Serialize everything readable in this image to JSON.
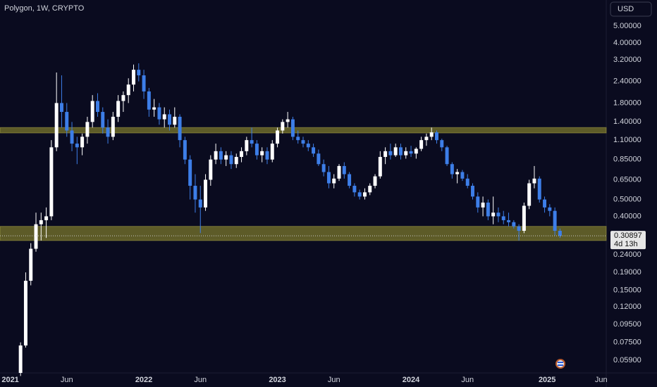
{
  "chart_data": {
    "type": "candlestick",
    "title": "Polygon, 1W, CRYPTO",
    "currency": "USD",
    "countdown": "4d 13h",
    "log_scale": true,
    "grid": false,
    "up_color": "#ffffff",
    "down_color": "#3d7ee8",
    "zone_color": "#7a772c",
    "price_line_color": "#c8c8c8",
    "zones": [
      [
        1.21,
        1.3
      ],
      [
        0.29,
        0.35
      ]
    ],
    "ylim": [
      0.05,
      7.07
    ],
    "yticks": [
      {
        "value": 5,
        "label": "5.00000"
      },
      {
        "value": 4,
        "label": "4.00000"
      },
      {
        "value": 3.2,
        "label": "3.20000"
      },
      {
        "value": 2.4,
        "label": "2.40000"
      },
      {
        "value": 1.8,
        "label": "1.80000"
      },
      {
        "value": 1.4,
        "label": "1.40000"
      },
      {
        "value": 1.1,
        "label": "1.10000"
      },
      {
        "value": 0.85,
        "label": "0.85000"
      },
      {
        "value": 0.65,
        "label": "0.65000"
      },
      {
        "value": 0.5,
        "label": "0.50000"
      },
      {
        "value": 0.4,
        "label": "0.40000"
      },
      {
        "value": 0.24,
        "label": "0.24000"
      },
      {
        "value": 0.19,
        "label": "0.19000"
      },
      {
        "value": 0.15,
        "label": "0.15000"
      },
      {
        "value": 0.12,
        "label": "0.12000"
      },
      {
        "value": 0.095,
        "label": "0.09500"
      },
      {
        "value": 0.075,
        "label": "0.07500"
      },
      {
        "value": 0.059,
        "label": "0.05900"
      }
    ],
    "xlim": [
      -4,
      232
    ],
    "xticks": [
      {
        "value": 0,
        "label": "2021"
      },
      {
        "value": 22,
        "label": "Jun"
      },
      {
        "value": 52,
        "label": "2022"
      },
      {
        "value": 74,
        "label": "Jun"
      },
      {
        "value": 104,
        "label": "2023"
      },
      {
        "value": 126,
        "label": "Jun"
      },
      {
        "value": 156,
        "label": "2024"
      },
      {
        "value": 178,
        "label": "Jun"
      },
      {
        "value": 209,
        "label": "2025"
      },
      {
        "value": 230,
        "label": "Jun"
      }
    ],
    "candles": [
      [
        4,
        0.05,
        0.075,
        0.048,
        0.072
      ],
      [
        6,
        0.072,
        0.19,
        0.07,
        0.17
      ],
      [
        8,
        0.17,
        0.28,
        0.16,
        0.26
      ],
      [
        10,
        0.26,
        0.42,
        0.25,
        0.36
      ],
      [
        12,
        0.36,
        0.42,
        0.29,
        0.38
      ],
      [
        14,
        0.38,
        0.45,
        0.3,
        0.4
      ],
      [
        16,
        0.4,
        1.1,
        0.38,
        1.0
      ],
      [
        18,
        1.0,
        2.7,
        0.95,
        1.8
      ],
      [
        20,
        1.8,
        2.6,
        1.3,
        1.6
      ],
      [
        22,
        1.6,
        1.8,
        1.15,
        1.25
      ],
      [
        24,
        1.25,
        1.4,
        0.95,
        1.05
      ],
      [
        26,
        1.05,
        1.15,
        0.8,
        1.0
      ],
      [
        28,
        1.0,
        1.2,
        0.9,
        1.15
      ],
      [
        30,
        1.15,
        1.5,
        1.05,
        1.4
      ],
      [
        32,
        1.4,
        2.0,
        1.3,
        1.85
      ],
      [
        34,
        1.85,
        2.05,
        1.5,
        1.6
      ],
      [
        36,
        1.6,
        1.7,
        1.2,
        1.3
      ],
      [
        38,
        1.3,
        1.45,
        1.05,
        1.15
      ],
      [
        40,
        1.15,
        1.6,
        1.1,
        1.5
      ],
      [
        42,
        1.5,
        2.0,
        1.4,
        1.85
      ],
      [
        44,
        1.85,
        2.1,
        1.6,
        2.0
      ],
      [
        46,
        2.0,
        2.5,
        1.8,
        2.3
      ],
      [
        48,
        2.3,
        3.0,
        2.1,
        2.8
      ],
      [
        50,
        2.8,
        3.05,
        2.4,
        2.6
      ],
      [
        52,
        2.6,
        2.8,
        1.9,
        2.1
      ],
      [
        54,
        2.1,
        2.2,
        1.5,
        1.65
      ],
      [
        56,
        1.65,
        1.9,
        1.5,
        1.7
      ],
      [
        58,
        1.7,
        1.8,
        1.35,
        1.45
      ],
      [
        60,
        1.45,
        1.7,
        1.3,
        1.55
      ],
      [
        62,
        1.55,
        1.65,
        1.25,
        1.35
      ],
      [
        64,
        1.35,
        1.7,
        1.3,
        1.5
      ],
      [
        66,
        1.5,
        1.55,
        1.0,
        1.1
      ],
      [
        68,
        1.1,
        1.15,
        0.8,
        0.85
      ],
      [
        70,
        0.85,
        0.9,
        0.5,
        0.6
      ],
      [
        72,
        0.6,
        0.7,
        0.42,
        0.5
      ],
      [
        74,
        0.5,
        0.6,
        0.32,
        0.45
      ],
      [
        76,
        0.45,
        0.7,
        0.43,
        0.65
      ],
      [
        78,
        0.65,
        0.9,
        0.6,
        0.85
      ],
      [
        80,
        0.85,
        1.05,
        0.8,
        0.95
      ],
      [
        82,
        0.95,
        1.0,
        0.8,
        0.85
      ],
      [
        84,
        0.85,
        0.95,
        0.78,
        0.9
      ],
      [
        86,
        0.9,
        0.95,
        0.75,
        0.8
      ],
      [
        88,
        0.8,
        0.92,
        0.76,
        0.88
      ],
      [
        90,
        0.88,
        1.0,
        0.82,
        0.95
      ],
      [
        92,
        0.95,
        1.15,
        0.9,
        1.1
      ],
      [
        94,
        1.1,
        1.3,
        1.0,
        1.05
      ],
      [
        96,
        1.05,
        1.1,
        0.85,
        0.9
      ],
      [
        98,
        0.9,
        1.0,
        0.82,
        0.95
      ],
      [
        100,
        0.95,
        1.0,
        0.8,
        0.85
      ],
      [
        102,
        0.85,
        1.1,
        0.82,
        1.05
      ],
      [
        104,
        1.05,
        1.3,
        1.0,
        1.25
      ],
      [
        106,
        1.25,
        1.45,
        1.2,
        1.4
      ],
      [
        108,
        1.4,
        1.6,
        1.3,
        1.45
      ],
      [
        110,
        1.45,
        1.5,
        1.1,
        1.15
      ],
      [
        112,
        1.15,
        1.25,
        1.05,
        1.1
      ],
      [
        114,
        1.1,
        1.15,
        1.0,
        1.05
      ],
      [
        116,
        1.05,
        1.1,
        0.95,
        1.0
      ],
      [
        118,
        1.0,
        1.05,
        0.88,
        0.92
      ],
      [
        120,
        0.92,
        0.97,
        0.78,
        0.8
      ],
      [
        122,
        0.8,
        0.85,
        0.68,
        0.72
      ],
      [
        124,
        0.72,
        0.78,
        0.58,
        0.62
      ],
      [
        126,
        0.62,
        0.7,
        0.58,
        0.66
      ],
      [
        128,
        0.66,
        0.8,
        0.64,
        0.78
      ],
      [
        130,
        0.78,
        0.82,
        0.66,
        0.7
      ],
      [
        132,
        0.7,
        0.72,
        0.58,
        0.6
      ],
      [
        134,
        0.6,
        0.62,
        0.52,
        0.55
      ],
      [
        136,
        0.55,
        0.57,
        0.5,
        0.52
      ],
      [
        138,
        0.52,
        0.58,
        0.5,
        0.55
      ],
      [
        140,
        0.55,
        0.62,
        0.53,
        0.6
      ],
      [
        142,
        0.6,
        0.7,
        0.58,
        0.68
      ],
      [
        144,
        0.68,
        0.95,
        0.66,
        0.88
      ],
      [
        146,
        0.88,
        1.0,
        0.8,
        0.95
      ],
      [
        148,
        0.95,
        1.05,
        0.85,
        0.9
      ],
      [
        150,
        0.9,
        1.05,
        0.88,
        1.0
      ],
      [
        152,
        1.0,
        1.05,
        0.85,
        0.9
      ],
      [
        154,
        0.9,
        1.0,
        0.86,
        0.95
      ],
      [
        156,
        0.95,
        1.02,
        0.88,
        0.92
      ],
      [
        158,
        0.92,
        1.0,
        0.86,
        0.98
      ],
      [
        160,
        0.98,
        1.15,
        0.95,
        1.1
      ],
      [
        162,
        1.1,
        1.2,
        1.02,
        1.15
      ],
      [
        164,
        1.15,
        1.3,
        1.1,
        1.22
      ],
      [
        166,
        1.22,
        1.25,
        1.05,
        1.1
      ],
      [
        168,
        1.1,
        1.12,
        0.95,
        1.0
      ],
      [
        170,
        1.0,
        1.02,
        0.78,
        0.8
      ],
      [
        172,
        0.8,
        0.82,
        0.66,
        0.7
      ],
      [
        174,
        0.7,
        0.75,
        0.62,
        0.72
      ],
      [
        176,
        0.72,
        0.74,
        0.64,
        0.66
      ],
      [
        178,
        0.66,
        0.7,
        0.58,
        0.6
      ],
      [
        180,
        0.6,
        0.62,
        0.5,
        0.52
      ],
      [
        182,
        0.52,
        0.55,
        0.42,
        0.45
      ],
      [
        184,
        0.45,
        0.52,
        0.4,
        0.48
      ],
      [
        186,
        0.48,
        0.5,
        0.38,
        0.4
      ],
      [
        188,
        0.4,
        0.52,
        0.36,
        0.42
      ],
      [
        190,
        0.42,
        0.45,
        0.37,
        0.4
      ],
      [
        192,
        0.4,
        0.43,
        0.36,
        0.38
      ],
      [
        194,
        0.38,
        0.42,
        0.35,
        0.37
      ],
      [
        196,
        0.37,
        0.38,
        0.34,
        0.35
      ],
      [
        198,
        0.35,
        0.36,
        0.29,
        0.33
      ],
      [
        200,
        0.33,
        0.48,
        0.32,
        0.46
      ],
      [
        202,
        0.46,
        0.65,
        0.44,
        0.62
      ],
      [
        204,
        0.62,
        0.78,
        0.58,
        0.66
      ],
      [
        206,
        0.66,
        0.68,
        0.48,
        0.5
      ],
      [
        208,
        0.5,
        0.52,
        0.42,
        0.45
      ],
      [
        210,
        0.45,
        0.47,
        0.4,
        0.43
      ],
      [
        212,
        0.43,
        0.45,
        0.31,
        0.33
      ],
      [
        214,
        0.33,
        0.34,
        0.3,
        0.30897
      ]
    ]
  }
}
